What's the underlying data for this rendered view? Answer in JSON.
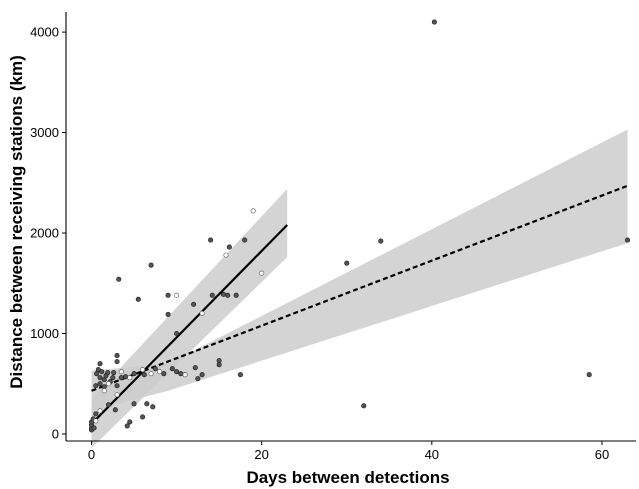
{
  "chart_data": {
    "type": "scatter",
    "title": "",
    "xlabel": "Days between detections",
    "ylabel": "Distance between receiving stations (km)",
    "xlim": [
      -3,
      64
    ],
    "ylim": [
      -70,
      4200
    ],
    "xticks": [
      0,
      20,
      40,
      60
    ],
    "yticks": [
      0,
      1000,
      2000,
      3000,
      4000
    ],
    "grid": false,
    "colors": {
      "filled_point": "#555555",
      "open_point": "#ffffff",
      "band": "#cccccc",
      "line": "#000000"
    },
    "series": [
      {
        "marker": "filled",
        "points": [
          [
            0,
            40
          ],
          [
            0,
            60
          ],
          [
            0,
            90
          ],
          [
            0,
            120
          ],
          [
            0.2,
            150
          ],
          [
            0.3,
            60
          ],
          [
            0.5,
            200
          ],
          [
            0.5,
            480
          ],
          [
            0.6,
            600
          ],
          [
            0.8,
            640
          ],
          [
            1,
            500
          ],
          [
            1,
            560
          ],
          [
            1,
            700
          ],
          [
            1.2,
            620
          ],
          [
            1.5,
            470
          ],
          [
            1.5,
            540
          ],
          [
            1.7,
            580
          ],
          [
            1.9,
            610
          ],
          [
            2,
            290
          ],
          [
            2.2,
            520
          ],
          [
            2.5,
            560
          ],
          [
            2.6,
            610
          ],
          [
            2.8,
            240
          ],
          [
            3,
            720
          ],
          [
            3,
            780
          ],
          [
            3,
            480
          ],
          [
            3.2,
            1540
          ],
          [
            3.5,
            560
          ],
          [
            4,
            570
          ],
          [
            4.2,
            80
          ],
          [
            4.5,
            120
          ],
          [
            5,
            300
          ],
          [
            5,
            600
          ],
          [
            5.5,
            1340
          ],
          [
            6,
            170
          ],
          [
            6.2,
            590
          ],
          [
            6.5,
            300
          ],
          [
            7,
            1680
          ],
          [
            7.2,
            270
          ],
          [
            7.5,
            650
          ],
          [
            8.5,
            600
          ],
          [
            9,
            1380
          ],
          [
            9,
            1190
          ],
          [
            9.5,
            650
          ],
          [
            10,
            620
          ],
          [
            10,
            1000
          ],
          [
            10.5,
            600
          ],
          [
            11,
            590
          ],
          [
            12,
            1290
          ],
          [
            12.2,
            660
          ],
          [
            12.5,
            550
          ],
          [
            13,
            590
          ],
          [
            14,
            1930
          ],
          [
            14.2,
            1380
          ],
          [
            15,
            730
          ],
          [
            15,
            690
          ],
          [
            15.5,
            1390
          ],
          [
            16,
            1380
          ],
          [
            16.2,
            1860
          ],
          [
            17,
            1380
          ],
          [
            17.5,
            590
          ],
          [
            18,
            1930
          ],
          [
            30,
            1700
          ],
          [
            32,
            280
          ],
          [
            34,
            1920
          ],
          [
            40.3,
            4100
          ],
          [
            58.5,
            590
          ],
          [
            63,
            1930
          ]
        ]
      },
      {
        "marker": "open",
        "points": [
          [
            0.5,
            130
          ],
          [
            1,
            230
          ],
          [
            1.5,
            430
          ],
          [
            2,
            500
          ],
          [
            3,
            390
          ],
          [
            3.5,
            620
          ],
          [
            4.5,
            560
          ],
          [
            6,
            640
          ],
          [
            7,
            600
          ],
          [
            8,
            620
          ],
          [
            10,
            1380
          ],
          [
            11,
            590
          ],
          [
            13,
            1200
          ],
          [
            15.8,
            1780
          ],
          [
            19,
            2220
          ],
          [
            20,
            1600
          ]
        ]
      }
    ],
    "fits": [
      {
        "style": "solid",
        "line": [
          [
            0,
            100
          ],
          [
            23,
            2080
          ]
        ],
        "band": {
          "x": [
            0,
            23
          ],
          "upper": [
            350,
            2440
          ],
          "lower": [
            -140,
            1760
          ]
        }
      },
      {
        "style": "dashed",
        "line": [
          [
            0,
            430
          ],
          [
            63,
            2470
          ]
        ],
        "band": {
          "x": [
            0,
            9,
            63
          ],
          "upper": [
            630,
            700,
            3030
          ],
          "lower": [
            230,
            430,
            1900
          ]
        }
      }
    ]
  }
}
